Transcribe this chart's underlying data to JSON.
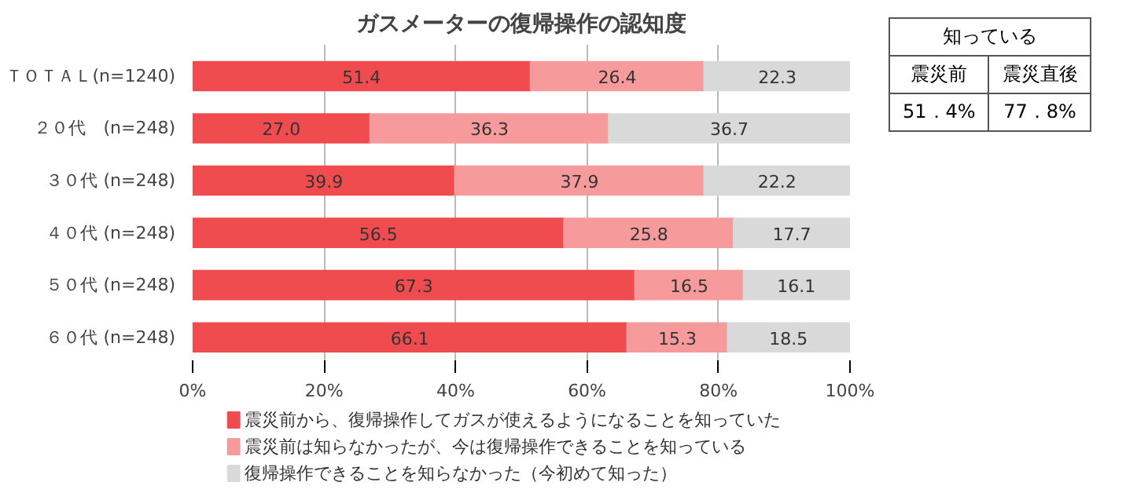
{
  "chart_data": {
    "type": "bar",
    "orientation": "horizontal",
    "stacked": true,
    "title": "ガスメーターの復帰操作の認知度",
    "categories": [
      "ＴＯＴＡＬ(n=1240)",
      "２０代　(n=248)",
      "３０代 (n=248)",
      "４０代 (n=248)",
      "５０代 (n=248)",
      "６０代 (n=248)"
    ],
    "series": [
      {
        "name": "震災前から、復帰操作してガスが使えるようになることを知っていた",
        "color": "#f04b4f",
        "values": [
          51.4,
          27.0,
          39.9,
          56.5,
          67.3,
          66.1
        ],
        "value_labels": [
          "51.4",
          "27.0",
          "39.9",
          "56.5",
          "67.3",
          "66.1"
        ]
      },
      {
        "name": "震災前は知らなかったが、今は復帰操作できることを知っている",
        "color": "#f79a9c",
        "values": [
          26.4,
          36.3,
          37.9,
          25.8,
          16.5,
          15.3
        ],
        "value_labels": [
          "26.4",
          "36.3",
          "37.9",
          "25.8",
          "16.5",
          "15.3"
        ]
      },
      {
        "name": "復帰操作できることを知らなかった（今初めて知った）",
        "color": "#d9d9d9",
        "values": [
          22.3,
          36.7,
          22.2,
          17.7,
          16.1,
          18.5
        ],
        "value_labels": [
          "22.3",
          "36.7",
          "22.2",
          "17.7",
          "16.1",
          "18.5"
        ]
      }
    ],
    "xlim": [
      0,
      100
    ],
    "xticks": [
      {
        "value": 0,
        "label": "0%"
      },
      {
        "value": 20,
        "label": "20%"
      },
      {
        "value": 40,
        "label": "40%"
      },
      {
        "value": 60,
        "label": "60%"
      },
      {
        "value": 80,
        "label": "80%"
      },
      {
        "value": 100,
        "label": "100%"
      }
    ],
    "grid": "x",
    "legend": "bottom",
    "annotations": [
      "知っている",
      "震災前",
      "震災直後",
      "51．4%",
      "77．8%"
    ]
  }
}
